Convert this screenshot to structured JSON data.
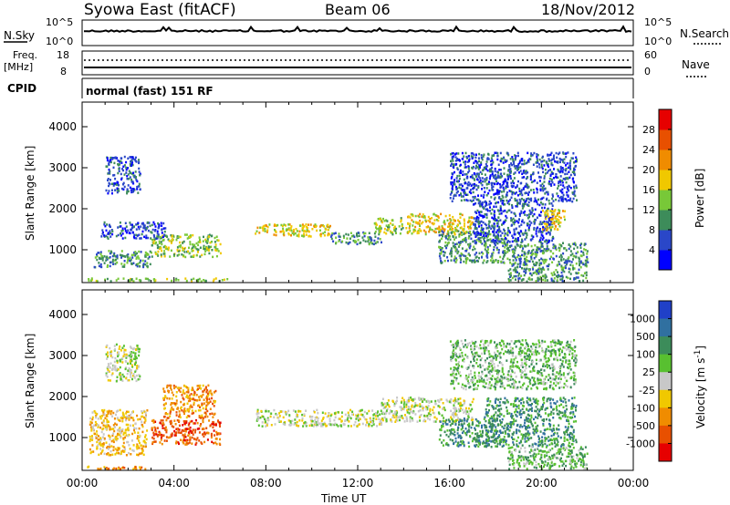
{
  "header": {
    "title": "Syowa East (fitACF)",
    "beam": "Beam 06",
    "date": "18/Nov/2012"
  },
  "top_panels": {
    "nsky_label": "N.Sky",
    "nsearch_label": "N.Search",
    "freq_label": "Freq.",
    "freq_unit": "[MHz]",
    "nave_label": "Nave",
    "cpid_label": "CPID",
    "cpid_value": "normal (fast) 151 RF",
    "noise_ticks": [
      "10^5",
      "10^0"
    ],
    "freq_ticks": [
      "18",
      "8"
    ],
    "nave_ticks": [
      "60",
      "0"
    ]
  },
  "chart_data": [
    {
      "type": "heatmap",
      "name": "power",
      "xlabel": "",
      "ylabel": "Slant Range [km]",
      "xlim": [
        0,
        24
      ],
      "ylim": [
        200,
        4600
      ],
      "yticks": [
        1000,
        2000,
        3000,
        4000
      ],
      "colorbar_label": "Power [dB]",
      "colorbar_ticks": [
        4,
        8,
        12,
        16,
        20,
        24,
        28
      ],
      "colorbar_colors": [
        "#0000ff",
        "#2a47c8",
        "#3d8c5a",
        "#78c838",
        "#f0c800",
        "#f08c00",
        "#e85000",
        "#e60000"
      ],
      "echo_regions": [
        {
          "t0": 0.2,
          "t1": 6.3,
          "r0": 250,
          "r1": 330,
          "level": 3
        },
        {
          "t0": 0.5,
          "t1": 3.0,
          "r0": 600,
          "r1": 1000,
          "level": 2
        },
        {
          "t0": 3.0,
          "t1": 6.0,
          "r0": 850,
          "r1": 1400,
          "level": 3
        },
        {
          "t0": 0.8,
          "t1": 3.6,
          "r0": 1300,
          "r1": 1700,
          "level": 1
        },
        {
          "t0": 1.0,
          "t1": 2.5,
          "r0": 2400,
          "r1": 3300,
          "level": 1
        },
        {
          "t0": 7.5,
          "t1": 10.8,
          "r0": 1350,
          "r1": 1650,
          "level": 4
        },
        {
          "t0": 10.8,
          "t1": 13.0,
          "r0": 1150,
          "r1": 1450,
          "level": 2
        },
        {
          "t0": 12.7,
          "t1": 14.0,
          "r0": 1400,
          "r1": 1800,
          "level": 3
        },
        {
          "t0": 14.0,
          "t1": 17.0,
          "r0": 1400,
          "r1": 1900,
          "level": 4
        },
        {
          "t0": 15.5,
          "t1": 18.5,
          "r0": 700,
          "r1": 1500,
          "level": 2
        },
        {
          "t0": 17.0,
          "t1": 20.5,
          "r0": 1200,
          "r1": 2200,
          "level": 1
        },
        {
          "t0": 18.5,
          "t1": 22.0,
          "r0": 250,
          "r1": 1200,
          "level": 2
        },
        {
          "t0": 20.0,
          "t1": 21.0,
          "r0": 1500,
          "r1": 2000,
          "level": 4
        },
        {
          "t0": 16.0,
          "t1": 21.5,
          "r0": 2200,
          "r1": 3400,
          "level": 1
        }
      ]
    },
    {
      "type": "heatmap",
      "name": "velocity",
      "xlabel": "Time UT",
      "ylabel": "Slant Range [km]",
      "xlim": [
        0,
        24
      ],
      "ylim": [
        200,
        4600
      ],
      "xticks": [
        "00:00",
        "04:00",
        "08:00",
        "12:00",
        "16:00",
        "20:00",
        "00:00"
      ],
      "yticks": [
        1000,
        2000,
        3000,
        4000
      ],
      "colorbar_label": "Velocity [m s^-1]",
      "colorbar_ticks": [
        "1000",
        "500",
        "100",
        "25",
        "-25",
        "-100",
        "-500",
        "-1000"
      ],
      "colorbar_colors": [
        "#2040c8",
        "#3070a0",
        "#3c8c5a",
        "#58c030",
        "#c8c8c8",
        "#f0c800",
        "#f08c00",
        "#e85000",
        "#e60000"
      ],
      "echo_regions": [
        {
          "t0": 0.2,
          "t1": 3.0,
          "r0": 250,
          "r1": 330,
          "level": 6
        },
        {
          "t0": 0.3,
          "t1": 2.8,
          "r0": 600,
          "r1": 1700,
          "level": 5
        },
        {
          "t0": 1.0,
          "t1": 2.5,
          "r0": 2400,
          "r1": 3300,
          "level": 4
        },
        {
          "t0": 3.0,
          "t1": 6.0,
          "r0": 850,
          "r1": 1450,
          "level": 7
        },
        {
          "t0": 3.5,
          "t1": 5.8,
          "r0": 1500,
          "r1": 2300,
          "level": 6
        },
        {
          "t0": 7.5,
          "t1": 13.0,
          "r0": 1300,
          "r1": 1700,
          "level": 4
        },
        {
          "t0": 13.0,
          "t1": 17.0,
          "r0": 1400,
          "r1": 2000,
          "level": 4
        },
        {
          "t0": 15.5,
          "t1": 18.0,
          "r0": 800,
          "r1": 1500,
          "level": 2
        },
        {
          "t0": 17.5,
          "t1": 21.5,
          "r0": 800,
          "r1": 2000,
          "level": 2
        },
        {
          "t0": 18.5,
          "t1": 22.0,
          "r0": 250,
          "r1": 800,
          "level": 3
        },
        {
          "t0": 16.0,
          "t1": 21.5,
          "r0": 2200,
          "r1": 3400,
          "level": 3
        }
      ]
    }
  ]
}
